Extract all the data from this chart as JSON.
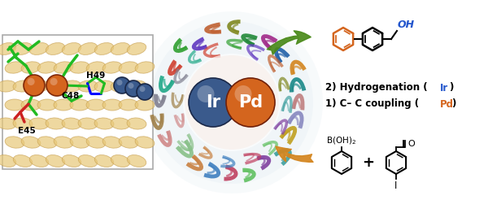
{
  "fig_width": 6.0,
  "fig_height": 2.46,
  "dpi": 100,
  "bg_color": "#ffffff",
  "ir_color": "#3a5a8c",
  "ir_color_grad": "#4a6aa0",
  "pd_color": "#d4651e",
  "pd_color_grad": "#e07030",
  "ir_label": "Ir",
  "pd_label": "Pd",
  "text_pd": "Pd",
  "text_ir": "Ir",
  "pd_text_color": "#d4651e",
  "ir_text_color": "#2255cc",
  "black_text_color": "#111111",
  "arrow_color_top": "#d4851e",
  "arrow_color_bottom": "#4a8a1a",
  "box_edge_color": "#aaaaaa",
  "protein_color": "#e8c878",
  "protein_edge_color": "#c8a050",
  "label_h49": "H49",
  "label_c48": "C48",
  "label_e45": "E45",
  "green_ligand": "#22bb22",
  "red_ligand": "#cc2222",
  "blue_sphere": "#3a5a8c",
  "orange_sphere": "#d4651e",
  "helix_colors": [
    "#1a8888",
    "#d4851e",
    "#2060a8",
    "#a02888",
    "#208838",
    "#808820",
    "#c06030",
    "#6038c0",
    "#30a030",
    "#d04030",
    "#20a888",
    "#808090",
    "#a08048",
    "#d08888",
    "#88c088",
    "#c88040",
    "#4080c0",
    "#c04060",
    "#60c060",
    "#8040a0",
    "#40a0a0",
    "#c0a020",
    "#8888c0",
    "#c08080",
    "#80c0a0",
    "#a0a040",
    "#e07050",
    "#5090d0"
  ],
  "text_1": "1) C– C coupling (",
  "text_2": "2) Hydrogenation (",
  "text_pd_color": "#d4651e",
  "text_ir_color": "#2255cc"
}
